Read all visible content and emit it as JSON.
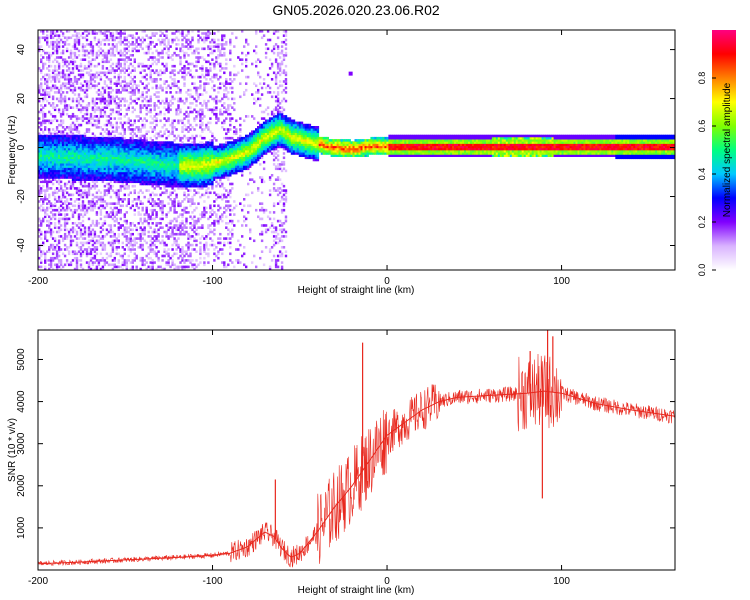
{
  "chart_data": [
    {
      "type": "heatmap",
      "title": "GN05.2026.020.23.06.R02",
      "xlabel": "Height of straight line (km)",
      "ylabel": "Frequency (Hz)",
      "xlim": [
        -200,
        165
      ],
      "ylim": [
        -50,
        48
      ],
      "x_ticks": [
        -200,
        -100,
        0,
        100
      ],
      "x_tick_labels": [
        "-200",
        "-100",
        "0",
        "100"
      ],
      "y_ticks": [
        40,
        20,
        0,
        -20,
        -40
      ],
      "y_tick_labels": [
        "40",
        "20",
        "0",
        "-20",
        "-40"
      ],
      "ridge": {
        "description_x": [
          -200,
          -160,
          -130,
          -110,
          -95,
          -80,
          -70,
          -62,
          -55,
          -45,
          -35,
          -20,
          -10,
          0,
          10,
          60,
          90,
          120,
          165
        ],
        "frequency_hz": [
          -4,
          -5,
          -7,
          -8,
          -6,
          -2,
          4,
          7,
          4,
          2,
          0,
          -1,
          0,
          0,
          0,
          0,
          0,
          0,
          0
        ]
      },
      "colorbar": {
        "label": "Normalized spectral amplitude",
        "range": [
          0,
          1
        ],
        "ticks": [
          0.0,
          0.2,
          0.4,
          0.6,
          0.8
        ],
        "tick_labels": [
          "0.0",
          "0.2",
          "0.4",
          "0.6",
          "0.8"
        ],
        "colors": [
          "#ffffff",
          "#d9b3ff",
          "#8000ff",
          "#0000ff",
          "#00c8ff",
          "#00ff80",
          "#80ff00",
          "#ffff00",
          "#ff8000",
          "#ff0000",
          "#ff0080"
        ]
      }
    },
    {
      "type": "line",
      "xlabel": "Height of straight line (km)",
      "ylabel": "SNR (10 * v/v)",
      "xlim": [
        -200,
        165
      ],
      "ylim": [
        0,
        5700
      ],
      "x_ticks": [
        -200,
        -100,
        0,
        100
      ],
      "x_tick_labels": [
        "-200",
        "-100",
        "0",
        "100"
      ],
      "y_ticks": [
        1000,
        2000,
        3000,
        4000,
        5000
      ],
      "y_tick_labels": [
        "1000",
        "2000",
        "3000",
        "4000",
        "5000"
      ],
      "series": [
        {
          "name": "SNR",
          "color": "#e8281e",
          "x": [
            -200,
            -180,
            -160,
            -140,
            -120,
            -100,
            -90,
            -80,
            -70,
            -65,
            -60,
            -55,
            -50,
            -40,
            -30,
            -20,
            -10,
            0,
            10,
            20,
            30,
            40,
            60,
            80,
            90,
            100,
            120,
            140,
            165
          ],
          "y": [
            150,
            180,
            220,
            260,
            300,
            350,
            400,
            550,
            900,
            800,
            500,
            300,
            400,
            900,
            1500,
            2000,
            2600,
            3200,
            3500,
            3800,
            4000,
            4100,
            4150,
            4200,
            4250,
            4200,
            3950,
            3800,
            3650
          ]
        }
      ],
      "spikes": [
        {
          "x": -64,
          "y": 2150
        },
        {
          "x": -14,
          "y": 5400
        },
        {
          "x": 82,
          "y": 5200
        },
        {
          "x": 89,
          "y": 1700
        },
        {
          "x": 92,
          "y": 5700
        },
        {
          "x": 95,
          "y": 5550
        }
      ]
    }
  ]
}
